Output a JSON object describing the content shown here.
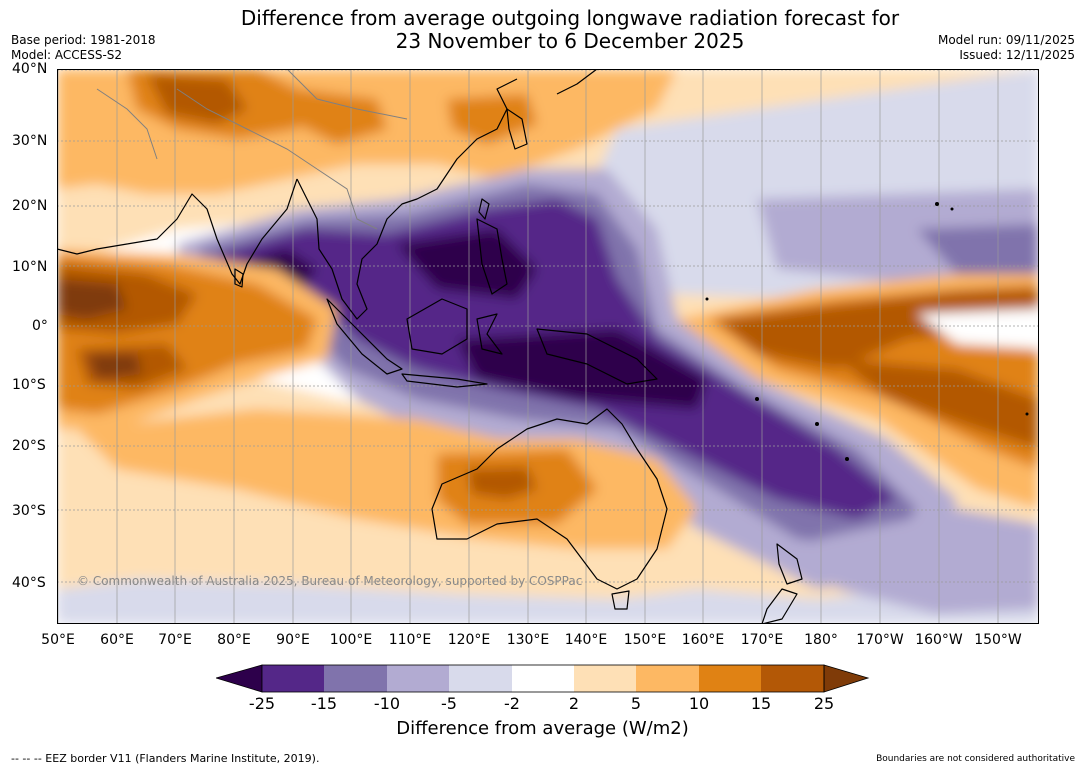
{
  "header": {
    "title_line1": "Difference from average outgoing longwave radiation forecast for",
    "title_line2": "23 November to 6 December 2025",
    "base_period": "Base period: 1981-2018",
    "model": "Model: ACCESS-S2",
    "model_run": "Model run: 09/11/2025",
    "issued": "Issued: 12/11/2025"
  },
  "axes": {
    "lat_labels": [
      "40°N",
      "30°N",
      "20°N",
      "10°N",
      "0°",
      "10°S",
      "20°S",
      "30°S",
      "40°S"
    ],
    "lon_labels": [
      "50°E",
      "60°E",
      "70°E",
      "80°E",
      "90°E",
      "100°E",
      "110°E",
      "120°E",
      "130°E",
      "140°E",
      "150°E",
      "160°E",
      "170°E",
      "180°",
      "170°W",
      "160°W",
      "150°W"
    ]
  },
  "map": {
    "copyright": "© Commonwealth of Australia 2025, Bureau of Meteorology, supported by COSPPac"
  },
  "colorbar": {
    "ticks": [
      "-25",
      "-15",
      "-10",
      "-5",
      "-2",
      "2",
      "5",
      "10",
      "15",
      "25"
    ],
    "colors": [
      "#2d004b",
      "#542788",
      "#8073ac",
      "#b2abd2",
      "#d8daeb",
      "#ffffff",
      "#fee0b6",
      "#fdb863",
      "#e08214",
      "#b35806",
      "#7f3b08"
    ],
    "label": "Difference from average (W/m2)"
  },
  "footer": {
    "eez": "--  --  -- EEZ border V11 (Flanders Marine Institute, 2019).",
    "disclaimer": "Boundaries are not considered authoritative"
  }
}
